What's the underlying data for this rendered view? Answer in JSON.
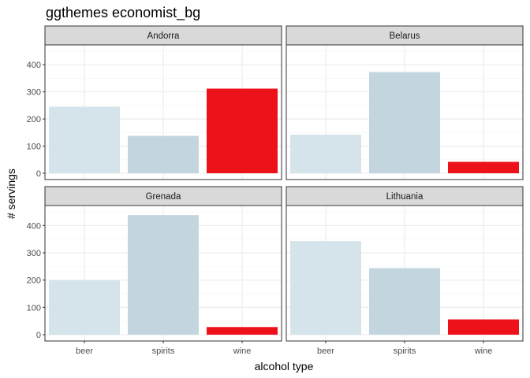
{
  "chart_data": {
    "type": "bar",
    "title": "ggthemes economist_bg",
    "xlabel": "alcohol type",
    "ylabel": "# servings",
    "categories": [
      "beer",
      "spirits",
      "wine"
    ],
    "ylim": [
      0,
      450
    ],
    "yticks": [
      0,
      100,
      200,
      300,
      400
    ],
    "grid": true,
    "facets": [
      {
        "name": "Andorra",
        "values": [
          245,
          138,
          312
        ]
      },
      {
        "name": "Belarus",
        "values": [
          142,
          373,
          42
        ]
      },
      {
        "name": "Grenada",
        "values": [
          199,
          438,
          28
        ]
      },
      {
        "name": "Lithuania",
        "values": [
          343,
          244,
          56
        ]
      }
    ],
    "colors": {
      "beer": "#d5e4eb",
      "spirits": "#c3d6df",
      "wine": "#ed111a",
      "strip_fill": "#d9d9d9",
      "panel_border": "#333333",
      "grid_major": "#ebebeb",
      "grid_minor": "#f5f5f5",
      "tick_text": "#4d4d4d"
    }
  }
}
